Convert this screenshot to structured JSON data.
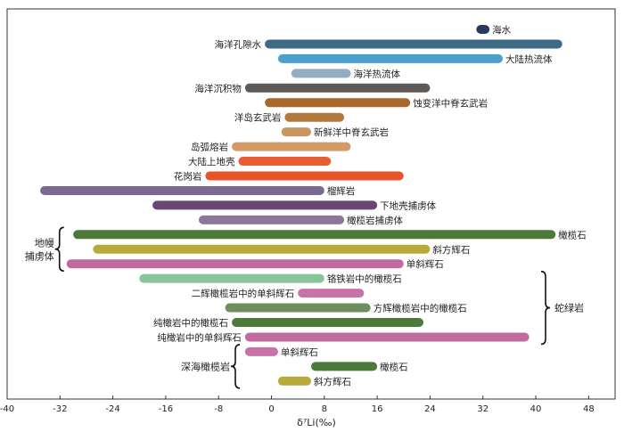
{
  "chart_data": {
    "type": "range-bar",
    "xlabel": "δ⁷Li(‰)",
    "xlim": [
      -40,
      52
    ],
    "xticks": [
      -40,
      -32,
      -24,
      -16,
      -8,
      0,
      8,
      16,
      24,
      32,
      40,
      48
    ],
    "rows": [
      {
        "label": "海水",
        "min": 31,
        "max": 33,
        "color": "#2b3a5c",
        "label_side": "right"
      },
      {
        "label": "海洋孔隙水",
        "min": -1,
        "max": 44,
        "color": "#3f6a83",
        "label_side": "left"
      },
      {
        "label": "大陆热流体",
        "min": 1,
        "max": 35,
        "color": "#4d9fd0",
        "label_side": "right"
      },
      {
        "label": "海洋热流体",
        "min": 3,
        "max": 12,
        "color": "#93aec0",
        "label_side": "right"
      },
      {
        "label": "海洋沉积物",
        "min": -4,
        "max": 24,
        "color": "#5e5a57",
        "label_side": "left"
      },
      {
        "label": "蚀变洋中脊玄武岩",
        "min": -1,
        "max": 21,
        "color": "#a8682b",
        "label_side": "right"
      },
      {
        "label": "洋岛玄武岩",
        "min": 2,
        "max": 11,
        "color": "#b07a3c",
        "label_side": "left"
      },
      {
        "label": "新鲜洋中脊玄武岩",
        "min": 1.5,
        "max": 6,
        "color": "#c89760",
        "label_side": "right"
      },
      {
        "label": "岛弧熔岩",
        "min": -6,
        "max": 12,
        "color": "#d49a6a",
        "label_side": "left"
      },
      {
        "label": "大陆上地壳",
        "min": -5,
        "max": 9,
        "color": "#e95c31",
        "label_side": "left"
      },
      {
        "label": "花岗岩",
        "min": -10,
        "max": 20,
        "color": "#e6542a",
        "label_side": "left"
      },
      {
        "label": "榴辉岩",
        "min": -35,
        "max": 8,
        "color": "#7a6a93",
        "label_side": "right"
      },
      {
        "label": "下地壳捕虏体",
        "min": -18,
        "max": 16,
        "color": "#6a4576",
        "label_side": "right"
      },
      {
        "label": "橄榄岩捕虏体",
        "min": -11,
        "max": 11,
        "color": "#8b769c",
        "label_side": "right"
      },
      {
        "label": "橄榄石",
        "min": -30,
        "max": 43,
        "color": "#4d7a3a",
        "label_side": "right"
      },
      {
        "label": "斜方辉石",
        "min": -27,
        "max": 24,
        "color": "#b8aa3a",
        "label_side": "right"
      },
      {
        "label": "单斜辉石",
        "min": -31,
        "max": 20,
        "color": "#c06aa0",
        "label_side": "right"
      },
      {
        "label": "铬铁岩中的橄榄石",
        "min": -20,
        "max": 8,
        "color": "#86c49a",
        "label_side": "right"
      },
      {
        "label": "二辉橄榄岩中的单斜辉石",
        "min": 4,
        "max": 14,
        "color": "#c873a8",
        "label_side": "left"
      },
      {
        "label": "方辉橄榄岩中的橄榄石",
        "min": -7,
        "max": 15,
        "color": "#6f8e5d",
        "label_side": "right"
      },
      {
        "label": "纯橄岩中的橄榄石",
        "min": -6,
        "max": 23,
        "color": "#4b7a3a",
        "label_side": "left"
      },
      {
        "label": "纯橄岩中的单斜辉石",
        "min": -4,
        "max": 39,
        "color": "#c06aa0",
        "label_side": "left"
      },
      {
        "label": "单斜辉石",
        "min": -4,
        "max": 1,
        "color": "#c873a8",
        "label_side": "right"
      },
      {
        "label": "橄榄石",
        "min": 6,
        "max": 16,
        "color": "#4b7a3a",
        "label_side": "right"
      },
      {
        "label": "斜方辉石",
        "min": 1,
        "max": 6,
        "color": "#b8aa3a",
        "label_side": "right"
      }
    ],
    "groups": [
      {
        "label": [
          "地幔",
          "捕虏体"
        ],
        "side": "left",
        "rows": [
          14,
          16
        ]
      },
      {
        "label": [
          "蛇绿岩"
        ],
        "side": "right",
        "rows": [
          17,
          21
        ]
      },
      {
        "label": [
          "深海橄榄岩"
        ],
        "side": "left",
        "rows": [
          22,
          24
        ]
      }
    ]
  }
}
